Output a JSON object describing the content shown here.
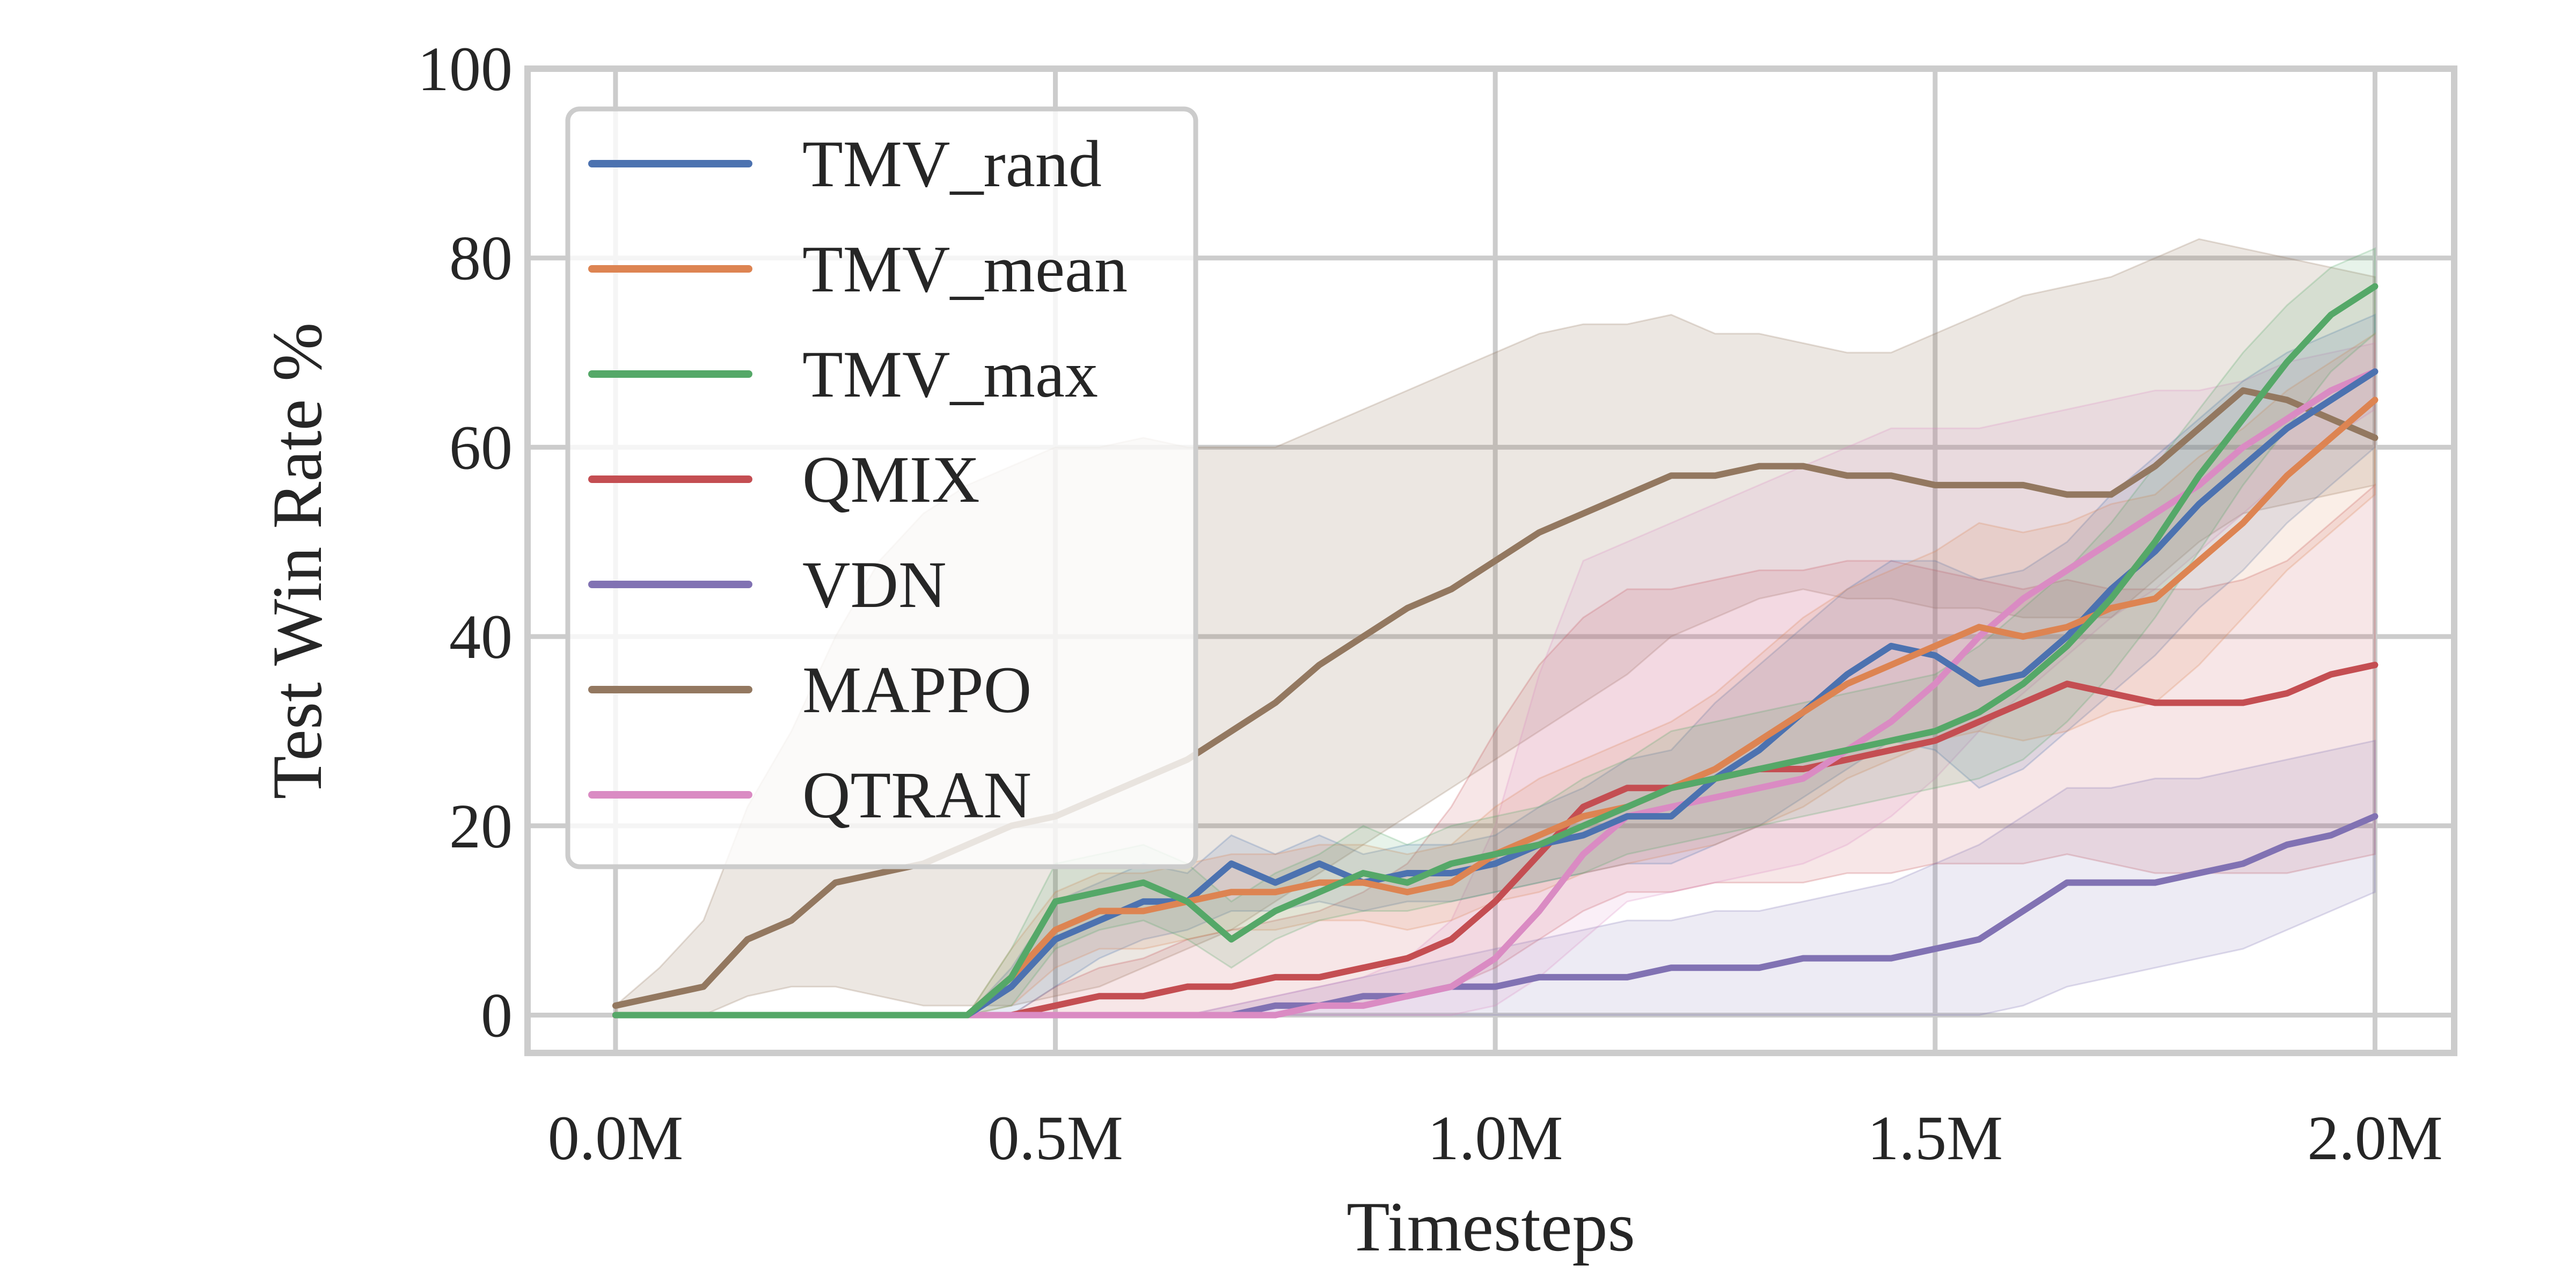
{
  "chart_data": {
    "type": "line",
    "title": "",
    "xlabel": "Timesteps",
    "ylabel": "Test Win Rate %",
    "xlim": [
      -0.1,
      2.09
    ],
    "ylim": [
      -4,
      100
    ],
    "x_ticks": [
      0.0,
      0.5,
      1.0,
      1.5,
      2.0
    ],
    "x_tick_labels": [
      "0.0M",
      "0.5M",
      "1.0M",
      "1.5M",
      "2.0M"
    ],
    "y_ticks": [
      0,
      20,
      40,
      60,
      80,
      100
    ],
    "y_tick_labels": [
      "0",
      "20",
      "40",
      "60",
      "80",
      "100"
    ],
    "grid": true,
    "legend_position": "top-left",
    "x_unit": "M timesteps",
    "series": [
      {
        "name": "TMV_rand",
        "color": "#4c72b0",
        "x": [
          0.0,
          0.4,
          0.45,
          0.5,
          0.55,
          0.6,
          0.65,
          0.7,
          0.75,
          0.8,
          0.85,
          0.9,
          0.95,
          1.0,
          1.05,
          1.1,
          1.15,
          1.2,
          1.25,
          1.3,
          1.35,
          1.4,
          1.45,
          1.5,
          1.55,
          1.6,
          1.65,
          1.7,
          1.75,
          1.8,
          1.85,
          1.9,
          1.95,
          2.0
        ],
        "y": [
          0,
          0,
          3,
          8,
          10,
          12,
          12,
          16,
          14,
          16,
          14,
          15,
          15,
          16,
          18,
          19,
          21,
          21,
          25,
          28,
          32,
          36,
          39,
          38,
          35,
          36,
          40,
          45,
          49,
          54,
          58,
          62,
          65,
          68
        ],
        "lower": [
          0,
          0,
          0,
          3,
          6,
          8,
          9,
          11,
          11,
          12,
          11,
          12,
          12,
          13,
          14,
          15,
          16,
          16,
          18,
          20,
          23,
          26,
          29,
          28,
          24,
          26,
          30,
          34,
          38,
          43,
          47,
          52,
          56,
          60
        ],
        "upper": [
          0,
          0,
          5,
          12,
          14,
          16,
          15,
          19,
          17,
          19,
          17,
          18,
          18,
          19,
          22,
          24,
          27,
          28,
          33,
          37,
          41,
          45,
          48,
          48,
          46,
          47,
          50,
          55,
          59,
          63,
          67,
          70,
          72,
          74
        ]
      },
      {
        "name": "TMV_mean",
        "color": "#dd8452",
        "x": [
          0.0,
          0.4,
          0.45,
          0.5,
          0.55,
          0.6,
          0.65,
          0.7,
          0.75,
          0.8,
          0.85,
          0.9,
          0.95,
          1.0,
          1.05,
          1.1,
          1.15,
          1.2,
          1.25,
          1.3,
          1.35,
          1.4,
          1.45,
          1.5,
          1.55,
          1.6,
          1.65,
          1.7,
          1.75,
          1.8,
          1.85,
          1.9,
          1.95,
          2.0
        ],
        "y": [
          0,
          0,
          4,
          9,
          11,
          11,
          12,
          13,
          13,
          14,
          14,
          13,
          14,
          17,
          19,
          21,
          22,
          24,
          26,
          29,
          32,
          35,
          37,
          39,
          41,
          40,
          41,
          43,
          44,
          48,
          52,
          57,
          61,
          65
        ],
        "lower": [
          0,
          0,
          1,
          5,
          7,
          7,
          8,
          9,
          9,
          10,
          10,
          9,
          10,
          12,
          13,
          15,
          16,
          17,
          18,
          20,
          22,
          25,
          27,
          29,
          30,
          29,
          30,
          32,
          33,
          37,
          42,
          47,
          51,
          55
        ],
        "upper": [
          0,
          0,
          7,
          13,
          15,
          15,
          16,
          17,
          17,
          18,
          18,
          17,
          18,
          22,
          25,
          27,
          29,
          31,
          34,
          38,
          42,
          45,
          47,
          49,
          52,
          51,
          52,
          54,
          55,
          59,
          62,
          66,
          69,
          72
        ]
      },
      {
        "name": "TMV_max",
        "color": "#55a868",
        "x": [
          0.0,
          0.4,
          0.45,
          0.5,
          0.55,
          0.6,
          0.65,
          0.7,
          0.75,
          0.8,
          0.85,
          0.9,
          0.95,
          1.0,
          1.05,
          1.1,
          1.15,
          1.2,
          1.25,
          1.3,
          1.35,
          1.4,
          1.45,
          1.5,
          1.55,
          1.6,
          1.65,
          1.7,
          1.75,
          1.8,
          1.85,
          1.9,
          1.95,
          2.0
        ],
        "y": [
          0,
          0,
          4,
          12,
          13,
          14,
          12,
          8,
          11,
          13,
          15,
          14,
          16,
          17,
          18,
          20,
          22,
          24,
          25,
          26,
          27,
          28,
          29,
          30,
          32,
          35,
          39,
          44,
          50,
          57,
          63,
          69,
          74,
          77
        ],
        "lower": [
          0,
          0,
          1,
          7,
          9,
          10,
          8,
          5,
          8,
          10,
          11,
          11,
          12,
          13,
          14,
          15,
          17,
          18,
          19,
          20,
          21,
          22,
          23,
          24,
          25,
          27,
          31,
          36,
          42,
          49,
          56,
          62,
          68,
          72
        ],
        "upper": [
          0,
          0,
          7,
          16,
          17,
          18,
          16,
          12,
          15,
          17,
          20,
          18,
          20,
          21,
          22,
          25,
          27,
          30,
          31,
          32,
          33,
          34,
          35,
          36,
          39,
          43,
          47,
          52,
          58,
          64,
          70,
          75,
          79,
          81
        ]
      },
      {
        "name": "QMIX",
        "color": "#c44e52",
        "x": [
          0.0,
          0.4,
          0.45,
          0.5,
          0.55,
          0.6,
          0.65,
          0.7,
          0.75,
          0.8,
          0.85,
          0.9,
          0.95,
          1.0,
          1.05,
          1.1,
          1.15,
          1.2,
          1.25,
          1.3,
          1.35,
          1.4,
          1.45,
          1.5,
          1.55,
          1.6,
          1.65,
          1.7,
          1.75,
          1.8,
          1.85,
          1.9,
          1.95,
          2.0
        ],
        "y": [
          0,
          0,
          0,
          1,
          2,
          2,
          3,
          3,
          4,
          4,
          5,
          6,
          8,
          12,
          17,
          22,
          24,
          24,
          25,
          26,
          26,
          27,
          28,
          29,
          31,
          33,
          35,
          34,
          33,
          33,
          33,
          34,
          36,
          37
        ],
        "lower": [
          0,
          0,
          0,
          0,
          0,
          0,
          0,
          0,
          1,
          1,
          1,
          2,
          3,
          5,
          8,
          11,
          13,
          13,
          14,
          14,
          14,
          15,
          15,
          16,
          16,
          16,
          17,
          16,
          15,
          15,
          15,
          15,
          16,
          17
        ],
        "upper": [
          0,
          0,
          0,
          3,
          5,
          6,
          8,
          9,
          10,
          11,
          13,
          16,
          22,
          30,
          37,
          42,
          45,
          45,
          46,
          47,
          47,
          48,
          48,
          47,
          46,
          45,
          46,
          45,
          45,
          45,
          46,
          48,
          52,
          56
        ]
      },
      {
        "name": "VDN",
        "color": "#8172b3",
        "x": [
          0.0,
          0.4,
          0.45,
          0.5,
          0.55,
          0.6,
          0.65,
          0.7,
          0.75,
          0.8,
          0.85,
          0.9,
          0.95,
          1.0,
          1.05,
          1.1,
          1.15,
          1.2,
          1.25,
          1.3,
          1.35,
          1.4,
          1.45,
          1.5,
          1.55,
          1.6,
          1.65,
          1.7,
          1.75,
          1.8,
          1.85,
          1.9,
          1.95,
          2.0
        ],
        "y": [
          0,
          0,
          0,
          0,
          0,
          0,
          0,
          0,
          1,
          1,
          2,
          2,
          3,
          3,
          4,
          4,
          4,
          5,
          5,
          5,
          6,
          6,
          6,
          7,
          8,
          11,
          14,
          14,
          14,
          15,
          16,
          18,
          19,
          21
        ],
        "lower": [
          0,
          0,
          0,
          0,
          0,
          0,
          0,
          0,
          0,
          0,
          0,
          0,
          0,
          0,
          0,
          0,
          0,
          0,
          0,
          0,
          0,
          0,
          0,
          0,
          0,
          1,
          3,
          4,
          5,
          6,
          7,
          9,
          11,
          13
        ],
        "upper": [
          0,
          0,
          0,
          0,
          0,
          0,
          0,
          1,
          2,
          3,
          4,
          5,
          6,
          7,
          8,
          9,
          10,
          10,
          11,
          11,
          12,
          13,
          14,
          16,
          18,
          21,
          24,
          24,
          25,
          25,
          26,
          27,
          28,
          29
        ]
      },
      {
        "name": "MAPPO",
        "color": "#937860",
        "x": [
          0.0,
          0.05,
          0.1,
          0.15,
          0.2,
          0.25,
          0.3,
          0.35,
          0.4,
          0.45,
          0.5,
          0.55,
          0.6,
          0.65,
          0.7,
          0.75,
          0.8,
          0.85,
          0.9,
          0.95,
          1.0,
          1.05,
          1.1,
          1.15,
          1.2,
          1.25,
          1.3,
          1.35,
          1.4,
          1.45,
          1.5,
          1.55,
          1.6,
          1.65,
          1.7,
          1.75,
          1.8,
          1.85,
          1.9,
          1.95,
          2.0
        ],
        "y": [
          1,
          2,
          3,
          8,
          10,
          14,
          15,
          16,
          18,
          20,
          21,
          23,
          25,
          27,
          30,
          33,
          37,
          40,
          43,
          45,
          48,
          51,
          53,
          55,
          57,
          57,
          58,
          58,
          57,
          57,
          56,
          56,
          56,
          55,
          55,
          58,
          62,
          66,
          65,
          63,
          61
        ],
        "lower": [
          0,
          0,
          0,
          2,
          3,
          3,
          2,
          1,
          1,
          1,
          2,
          3,
          5,
          7,
          9,
          12,
          15,
          18,
          21,
          24,
          27,
          30,
          33,
          36,
          40,
          42,
          44,
          45,
          44,
          44,
          43,
          43,
          42,
          42,
          42,
          46,
          50,
          53,
          54,
          55,
          56
        ],
        "upper": [
          1,
          5,
          10,
          22,
          30,
          40,
          48,
          53,
          56,
          58,
          60,
          60,
          61,
          60,
          60,
          60,
          62,
          64,
          66,
          68,
          70,
          72,
          73,
          73,
          74,
          72,
          72,
          71,
          70,
          70,
          72,
          74,
          76,
          77,
          78,
          80,
          82,
          81,
          80,
          79,
          78
        ]
      },
      {
        "name": "QTRAN",
        "color": "#da8bc3",
        "x": [
          0.0,
          0.4,
          0.45,
          0.5,
          0.55,
          0.6,
          0.65,
          0.7,
          0.75,
          0.8,
          0.85,
          0.9,
          0.95,
          1.0,
          1.05,
          1.1,
          1.15,
          1.2,
          1.25,
          1.3,
          1.35,
          1.4,
          1.45,
          1.5,
          1.55,
          1.6,
          1.65,
          1.7,
          1.75,
          1.8,
          1.85,
          1.9,
          1.95,
          2.0
        ],
        "y": [
          0,
          0,
          0,
          0,
          0,
          0,
          0,
          0,
          0,
          1,
          1,
          2,
          3,
          6,
          11,
          17,
          21,
          22,
          23,
          24,
          25,
          28,
          31,
          35,
          40,
          44,
          47,
          50,
          53,
          56,
          60,
          63,
          66,
          68
        ],
        "lower": [
          0,
          0,
          0,
          0,
          0,
          0,
          0,
          0,
          0,
          0,
          0,
          0,
          0,
          1,
          4,
          8,
          12,
          13,
          14,
          15,
          16,
          18,
          21,
          25,
          30,
          34,
          38,
          42,
          45,
          49,
          53,
          57,
          61,
          64
        ],
        "upper": [
          0,
          0,
          0,
          0,
          0,
          0,
          0,
          1,
          2,
          3,
          4,
          6,
          10,
          20,
          36,
          48,
          50,
          52,
          54,
          56,
          58,
          60,
          62,
          62,
          62,
          63,
          64,
          65,
          66,
          66,
          67,
          69,
          70,
          71
        ]
      }
    ]
  }
}
